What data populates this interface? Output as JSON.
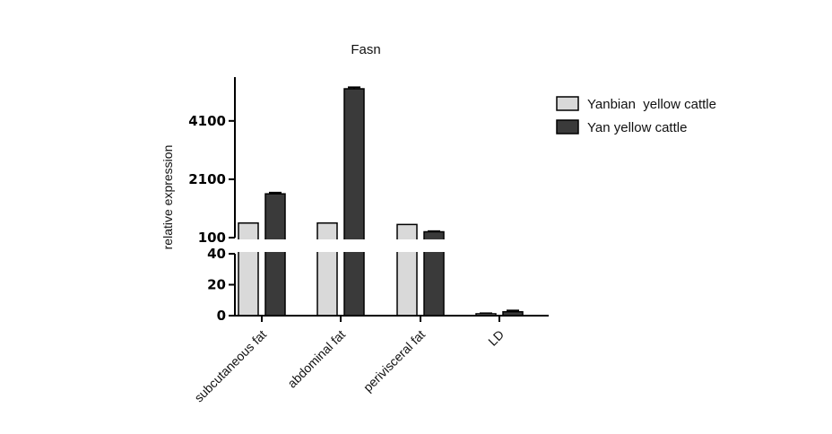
{
  "chart_data": {
    "type": "bar",
    "title": "Fasn",
    "ylabel": "relative expression",
    "xlabel": "",
    "categories": [
      "subcutaneous fat",
      "abdominal fat",
      "perivisceral fat",
      "LD"
    ],
    "series": [
      {
        "name": "Yanbian  yellow cattle",
        "color": "#d9d9d9",
        "values": [
          600,
          600,
          550,
          1.2
        ],
        "errors": [
          0,
          0,
          0,
          0.3
        ]
      },
      {
        "name": "Yan yellow cattle",
        "color": "#3a3a3a",
        "values": [
          1600,
          5200,
          300,
          2.5
        ],
        "errors": [
          40,
          50,
          20,
          0.8
        ]
      }
    ],
    "y_axis_broken": true,
    "lower_segment": {
      "ylim": [
        0,
        40
      ],
      "ticks": [
        "0",
        "20",
        "40"
      ]
    },
    "upper_segment": {
      "ylim": [
        100,
        5600
      ],
      "ticks": [
        "100",
        "2100",
        "4100"
      ]
    },
    "legend_position": "right"
  }
}
